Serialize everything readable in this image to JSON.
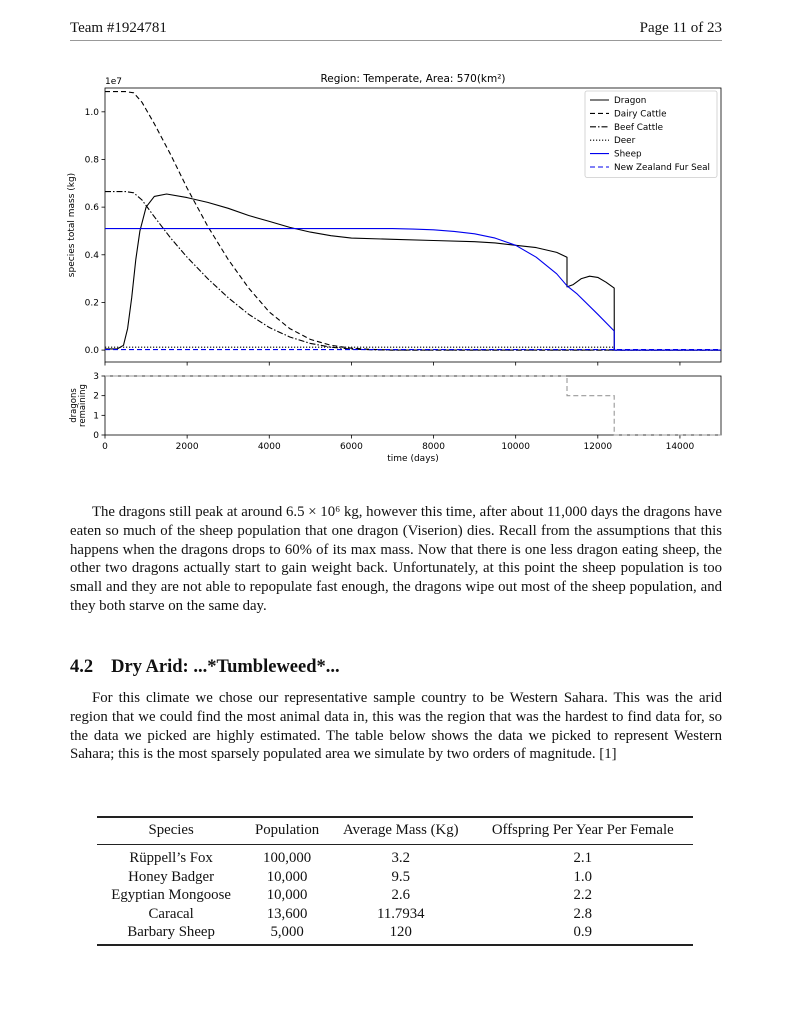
{
  "header": {
    "left": "Team #1924781",
    "right": "Page 11 of 23"
  },
  "chart_data": [
    {
      "type": "line",
      "title": "Region: Temperate, Area: 570(km²)",
      "ylabel": "species total mass (kg)",
      "y_scale_label": "1e7",
      "xlim": [
        0,
        15000
      ],
      "ylim": [
        -0.05,
        1.1
      ],
      "yticks": [
        0.0,
        0.2,
        0.4,
        0.6,
        0.8,
        1.0
      ],
      "ytick_labels": [
        "0.0",
        "0.2",
        "0.4",
        "0.6",
        "0.8",
        "1.0"
      ],
      "legend_position": "top-right",
      "grid": false,
      "series": [
        {
          "name": "Dragon",
          "color": "#000000",
          "dash": "solid",
          "x": [
            0,
            300,
            450,
            550,
            650,
            750,
            850,
            1000,
            1200,
            1500,
            2000,
            2500,
            3000,
            3500,
            4000,
            4500,
            5000,
            5500,
            6000,
            7000,
            8000,
            9000,
            9500,
            10000,
            10500,
            11000,
            11250,
            11251,
            11400,
            11600,
            11800,
            12000,
            12200,
            12400,
            12401,
            15000
          ],
          "y": [
            0.005,
            0.005,
            0.02,
            0.09,
            0.22,
            0.38,
            0.5,
            0.6,
            0.645,
            0.655,
            0.64,
            0.62,
            0.595,
            0.565,
            0.54,
            0.515,
            0.495,
            0.48,
            0.47,
            0.465,
            0.46,
            0.455,
            0.45,
            0.44,
            0.43,
            0.41,
            0.39,
            0.265,
            0.275,
            0.3,
            0.31,
            0.305,
            0.285,
            0.26,
            0.0,
            0.0
          ]
        },
        {
          "name": "Dairy Cattle",
          "color": "#000000",
          "dash": "dashed",
          "x": [
            0,
            500,
            700,
            900,
            1200,
            1600,
            2000,
            2500,
            3000,
            3500,
            4000,
            4500,
            5000,
            5500,
            6000,
            6500,
            7000,
            8000,
            15000
          ],
          "y": [
            1.085,
            1.085,
            1.08,
            1.04,
            0.95,
            0.82,
            0.68,
            0.52,
            0.38,
            0.26,
            0.16,
            0.09,
            0.045,
            0.02,
            0.008,
            0.003,
            0.0,
            0.0,
            0.0
          ]
        },
        {
          "name": "Beef Cattle",
          "color": "#000000",
          "dash": "dashdot",
          "x": [
            0,
            500,
            700,
            900,
            1200,
            1600,
            2000,
            2500,
            3000,
            3500,
            4000,
            4500,
            5000,
            5500,
            6000,
            6500,
            7000,
            15000
          ],
          "y": [
            0.665,
            0.665,
            0.66,
            0.63,
            0.56,
            0.47,
            0.39,
            0.3,
            0.22,
            0.15,
            0.095,
            0.055,
            0.028,
            0.012,
            0.004,
            0.001,
            0.0,
            0.0
          ]
        },
        {
          "name": "Deer",
          "color": "#000000",
          "dash": "dotted",
          "x": [
            0,
            12400,
            12401,
            15000
          ],
          "y": [
            0.012,
            0.012,
            0.0,
            0.0
          ]
        },
        {
          "name": "Sheep",
          "color": "#0000ee",
          "dash": "solid",
          "x": [
            0,
            7000,
            7500,
            8000,
            8500,
            9000,
            9500,
            10000,
            10500,
            11000,
            11250,
            11500,
            12000,
            12400,
            12401,
            15000
          ],
          "y": [
            0.51,
            0.51,
            0.508,
            0.505,
            0.498,
            0.488,
            0.47,
            0.44,
            0.39,
            0.32,
            0.27,
            0.235,
            0.15,
            0.08,
            0.0,
            0.0
          ]
        },
        {
          "name": "New Zealand Fur Seal",
          "color": "#0000ee",
          "dash": "dashed",
          "x": [
            0,
            15000
          ],
          "y": [
            0.002,
            0.002
          ]
        }
      ]
    },
    {
      "type": "line",
      "ylabel_lines": [
        "dragons",
        "remaining"
      ],
      "xlabel": "time (days)",
      "xlim": [
        0,
        15000
      ],
      "ylim": [
        0,
        3
      ],
      "xticks": [
        0,
        2000,
        4000,
        6000,
        8000,
        10000,
        12000,
        14000
      ],
      "xtick_labels": [
        "0",
        "2000",
        "4000",
        "6000",
        "8000",
        "10000",
        "12000",
        "14000"
      ],
      "yticks": [
        0,
        1,
        2,
        3
      ],
      "ytick_labels": [
        "0",
        "1",
        "2",
        "3"
      ],
      "series": [
        {
          "name": "",
          "color": "#999999",
          "dash": "dashed",
          "x": [
            0,
            11250,
            11250,
            12400,
            12400,
            15000
          ],
          "y": [
            3,
            3,
            2,
            2,
            0,
            0
          ]
        }
      ]
    }
  ],
  "paragraph1": "The dragons still peak at around 6.5 × 10⁶ kg, however this time, after about 11,000 days the dragons have eaten so much of the sheep population that one dragon (Viserion) dies. Recall from the assumptions that this happens when the dragons drops to 60% of its max mass. Now that there is one less dragon eating sheep, the other two dragons actually start to gain weight back. Unfortunately, at this point the sheep population is too small and they are not able to repopulate fast enough, the dragons wipe out most of the sheep population, and they both starve on the same day.",
  "section": {
    "number": "4.2",
    "title": "Dry Arid: ...*Tumbleweed*..."
  },
  "paragraph2": "For this climate we chose our representative sample country to be Western Sahara. This was the arid region that we could find the most animal data in, this was the region that was the hardest to find data for, so the data we picked are highly estimated. The table below shows the data we picked to represent Western Sahara; this is the most sparsely populated area we simulate by two orders of magnitude. [1]",
  "table": {
    "headers": [
      "Species",
      "Population",
      "Average Mass (Kg)",
      "Offspring Per Year Per Female"
    ],
    "rows": [
      [
        "Rüppell’s Fox",
        "100,000",
        "3.2",
        "2.1"
      ],
      [
        "Honey Badger",
        "10,000",
        "9.5",
        "1.0"
      ],
      [
        "Egyptian Mongoose",
        "10,000",
        "2.6",
        "2.2"
      ],
      [
        "Caracal",
        "13,600",
        "11.7934",
        "2.8"
      ],
      [
        "Barbary Sheep",
        "5,000",
        "120",
        "0.9"
      ]
    ]
  }
}
